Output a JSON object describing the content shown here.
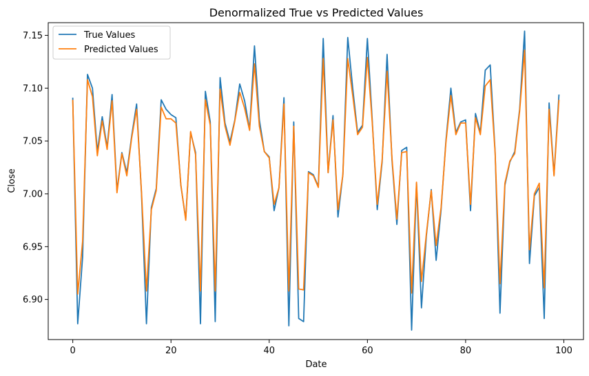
{
  "chart_data": {
    "type": "line",
    "title": "Denormalized True vs Predicted Values",
    "xlabel": "Date",
    "ylabel": "Close",
    "xlim": [
      -5,
      104
    ],
    "ylim": [
      6.862,
      7.162
    ],
    "xticks": [
      0,
      20,
      40,
      60,
      80,
      100
    ],
    "xtick_labels": [
      "0",
      "20",
      "40",
      "60",
      "80",
      "100"
    ],
    "yticks": [
      6.9,
      6.95,
      7.0,
      7.05,
      7.1,
      7.15
    ],
    "ytick_labels": [
      "6.90",
      "6.95",
      "7.00",
      "7.05",
      "7.10",
      "7.15"
    ],
    "grid": false,
    "legend_position": "upper-left",
    "x": [
      0,
      1,
      2,
      3,
      4,
      5,
      6,
      7,
      8,
      9,
      10,
      11,
      12,
      13,
      14,
      15,
      16,
      17,
      18,
      19,
      20,
      21,
      22,
      23,
      24,
      25,
      26,
      27,
      28,
      29,
      30,
      31,
      32,
      33,
      34,
      35,
      36,
      37,
      38,
      39,
      40,
      41,
      42,
      43,
      44,
      45,
      46,
      47,
      48,
      49,
      50,
      51,
      52,
      53,
      54,
      55,
      56,
      57,
      58,
      59,
      60,
      61,
      62,
      63,
      64,
      65,
      66,
      67,
      68,
      69,
      70,
      71,
      72,
      73,
      74,
      75,
      76,
      77,
      78,
      79,
      80,
      81,
      82,
      83,
      84,
      85,
      86,
      87,
      88,
      89,
      90,
      91,
      92,
      93,
      94,
      95,
      96,
      97,
      98,
      99
    ],
    "series": [
      {
        "name": "True Values",
        "color": "#1f77b4",
        "values": [
          7.091,
          6.877,
          6.94,
          7.113,
          7.1,
          7.04,
          7.073,
          7.044,
          7.094,
          7.003,
          7.039,
          7.02,
          7.055,
          7.085,
          7.0,
          6.877,
          6.987,
          7.005,
          7.089,
          7.08,
          7.075,
          7.072,
          7.008,
          6.976,
          7.058,
          7.039,
          6.877,
          7.097,
          7.068,
          6.879,
          7.11,
          7.067,
          7.049,
          7.07,
          7.104,
          7.088,
          7.061,
          7.14,
          7.07,
          7.04,
          7.035,
          6.984,
          7.006,
          7.091,
          6.875,
          7.068,
          6.882,
          6.879,
          7.021,
          7.018,
          7.007,
          7.147,
          7.02,
          7.074,
          6.978,
          7.018,
          7.148,
          7.1,
          7.058,
          7.065,
          7.147,
          7.068,
          6.985,
          7.03,
          7.132,
          7.032,
          6.971,
          7.041,
          7.044,
          6.871,
          7.01,
          6.892,
          6.96,
          7.004,
          6.937,
          6.985,
          7.051,
          7.1,
          7.058,
          7.068,
          7.07,
          6.984,
          7.076,
          7.058,
          7.117,
          7.122,
          7.04,
          6.887,
          7.008,
          7.03,
          7.04,
          7.08,
          7.154,
          6.934,
          6.998,
          7.006,
          6.882,
          7.086,
          7.018,
          7.094
        ]
      },
      {
        "name": "Predicted Values",
        "color": "#ff7f0e",
        "values": [
          7.089,
          6.905,
          6.955,
          7.108,
          7.092,
          7.036,
          7.069,
          7.042,
          7.088,
          7.001,
          7.038,
          7.017,
          7.053,
          7.08,
          7.002,
          6.908,
          6.985,
          7.003,
          7.082,
          7.071,
          7.071,
          7.067,
          7.009,
          6.975,
          7.059,
          7.037,
          6.908,
          7.089,
          7.065,
          6.908,
          7.099,
          7.064,
          7.046,
          7.069,
          7.096,
          7.081,
          7.06,
          7.123,
          7.064,
          7.04,
          7.034,
          6.99,
          7.006,
          7.085,
          6.908,
          7.064,
          6.91,
          6.909,
          7.02,
          7.017,
          7.006,
          7.128,
          7.02,
          7.07,
          6.985,
          7.018,
          7.128,
          7.093,
          7.056,
          7.063,
          7.129,
          7.066,
          6.99,
          7.032,
          7.116,
          7.034,
          6.976,
          7.039,
          7.04,
          6.906,
          7.011,
          6.917,
          6.962,
          7.003,
          6.951,
          6.987,
          7.049,
          7.093,
          7.056,
          7.067,
          7.067,
          6.99,
          7.072,
          7.056,
          7.102,
          7.108,
          7.039,
          6.915,
          7.01,
          7.031,
          7.038,
          7.078,
          7.136,
          6.947,
          7.0,
          7.01,
          6.911,
          7.08,
          7.017,
          7.089
        ]
      }
    ]
  }
}
